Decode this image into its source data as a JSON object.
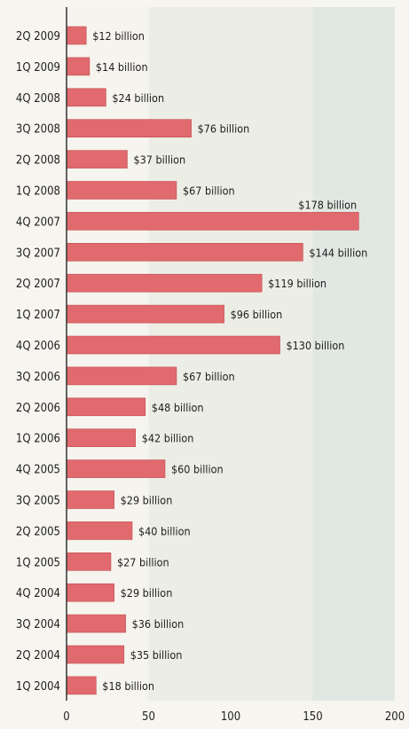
{
  "chart_data": {
    "type": "bar",
    "orientation": "horizontal",
    "categories": [
      "2Q 2009",
      "1Q 2009",
      "4Q 2008",
      "3Q 2008",
      "2Q 2008",
      "1Q 2008",
      "4Q 2007",
      "3Q 2007",
      "2Q 2007",
      "1Q 2007",
      "4Q 2006",
      "3Q 2006",
      "2Q 2006",
      "1Q 2006",
      "4Q 2005",
      "3Q 2005",
      "2Q 2005",
      "1Q 2005",
      "4Q 2004",
      "3Q 2004",
      "2Q 2004",
      "1Q 2004"
    ],
    "values": [
      12,
      14,
      24,
      76,
      37,
      67,
      178,
      144,
      119,
      96,
      130,
      67,
      48,
      42,
      60,
      29,
      40,
      27,
      29,
      36,
      35,
      18
    ],
    "data_labels": [
      "$12 billion",
      "$14 billion",
      "$24 billion",
      "$76 billion",
      "$37 billion",
      "$67 billion",
      "$178 billion",
      "$144 billion",
      "$119 billion",
      "$96 billion",
      "$130 billion",
      "$67 billion",
      "$48 billion",
      "$42 billion",
      "$60 billion",
      "$29 billion",
      "$40 billion",
      "$27 billion",
      "$29 billion",
      "$36 billion",
      "$35 billion",
      "$18 billion"
    ],
    "xlim": [
      0,
      200
    ],
    "xticks": [
      "0",
      "50",
      "100",
      "150",
      "200"
    ],
    "title": "",
    "xlabel": "",
    "ylabel": "",
    "grid": false,
    "colors": {
      "bar": "#e06a6d",
      "bar_edge": "#c44c52",
      "band_light": "#f6f4ee",
      "band_mid": "#eceee6",
      "band_dark": "#e1e7e2",
      "axis": "#333333"
    }
  }
}
